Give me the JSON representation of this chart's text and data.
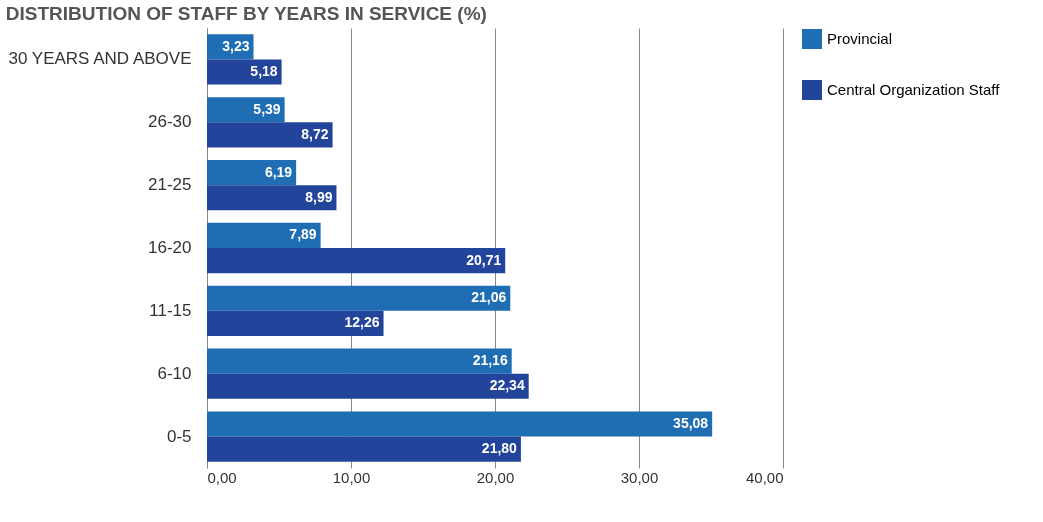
{
  "chart_data": {
    "type": "bar",
    "orientation": "horizontal",
    "title": "DISTRIBUTION OF STAFF BY YEARS IN SERVICE (%)",
    "categories": [
      "30 YEARS AND ABOVE",
      "26-30",
      "21-25",
      "16-20",
      "11-15",
      "6-10",
      "0-5"
    ],
    "series": [
      {
        "name": "Provincial",
        "color": "#1f6db3",
        "values": [
          3.23,
          5.39,
          6.19,
          7.89,
          21.06,
          21.16,
          35.08
        ],
        "value_labels": [
          "3,23",
          "5,39",
          "6,19",
          "7,89",
          "21,06",
          "21,16",
          "35,08"
        ]
      },
      {
        "name": "Central Organization Staff",
        "color": "#22449a",
        "values": [
          5.18,
          8.72,
          8.99,
          20.71,
          12.26,
          22.34,
          21.8
        ],
        "value_labels": [
          "5,18",
          "8,72",
          "8,99",
          "20,71",
          "12,26",
          "22,34",
          "21,80"
        ]
      }
    ],
    "xlim": [
      0,
      40
    ],
    "xticks": [
      {
        "value": 0,
        "label": "0,00"
      },
      {
        "value": 10,
        "label": "10,00"
      },
      {
        "value": 20,
        "label": "20,00"
      },
      {
        "value": 30,
        "label": "30,00"
      },
      {
        "value": 40,
        "label": "40,00"
      }
    ],
    "grid": "x",
    "legend": "right"
  }
}
